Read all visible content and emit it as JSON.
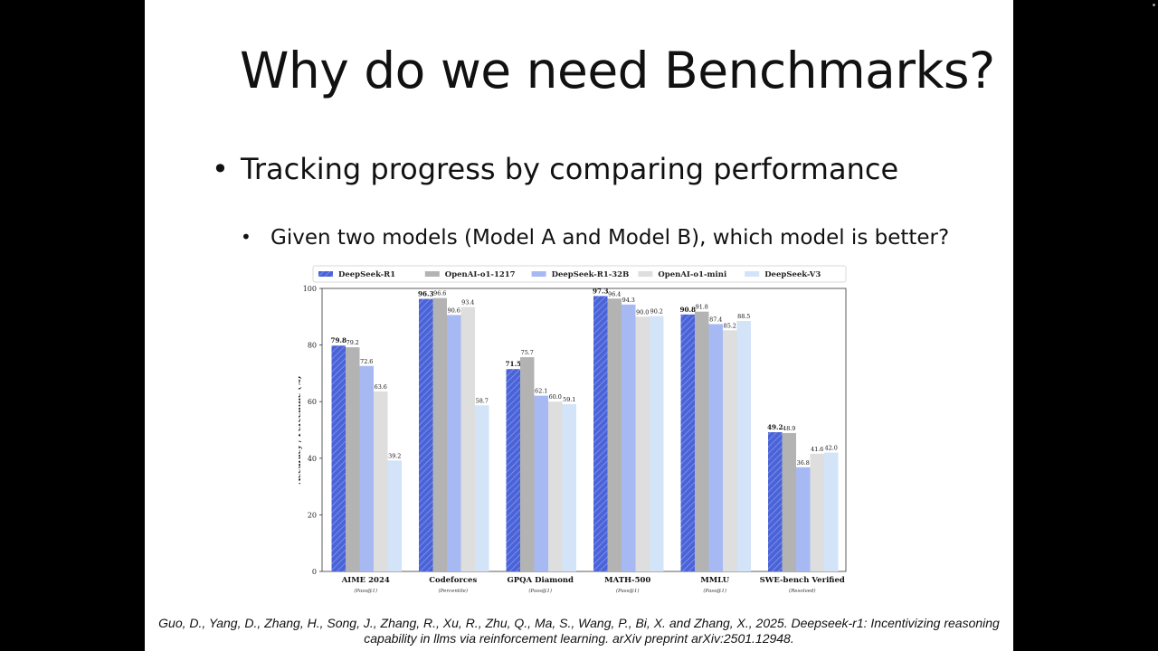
{
  "slide": {
    "title": "Why do we need Benchmarks?",
    "bullet1": "Tracking progress by comparing performance",
    "bullet2": "Given two models (Model A and Model B), which model is better?",
    "bullet_symbol": "•",
    "citation_line1": "Guo, D., Yang, D., Zhang, H., Song, J., Zhang, R., Xu, R., Zhu, Q., Ma, S., Wang, P., Bi, X. and Zhang, X., 2025. Deepseek-r1: Incentivizing reasoning",
    "citation_line2": "capability in llms via reinforcement learning. arXiv preprint arXiv:2501.12948."
  },
  "chart_data": {
    "type": "bar",
    "ylabel": "Accuracy / Percentile (%)",
    "ylim": [
      0,
      100
    ],
    "yticks": [
      0,
      20,
      40,
      60,
      80,
      100
    ],
    "grid": false,
    "legend_position": "top",
    "categories": [
      "AIME 2024",
      "Codeforces",
      "GPQA Diamond",
      "MATH-500",
      "MMLU",
      "SWE-bench Verified"
    ],
    "category_sublabels": [
      "(Pass@1)",
      "(Percentile)",
      "(Pass@1)",
      "(Pass@1)",
      "(Pass@1)",
      "(Resolved)"
    ],
    "series": [
      {
        "name": "DeepSeek-R1",
        "values": [
          79.8,
          96.3,
          71.5,
          97.3,
          90.8,
          49.2
        ],
        "color": "#4a63d8",
        "hatched": true,
        "bold_labels": true
      },
      {
        "name": "OpenAI-o1-1217",
        "values": [
          79.2,
          96.6,
          75.7,
          96.4,
          91.8,
          48.9
        ],
        "color": "#b3b3b3"
      },
      {
        "name": "DeepSeek-R1-32B",
        "values": [
          72.6,
          90.6,
          62.1,
          94.3,
          87.4,
          36.8
        ],
        "color": "#a7b9f2"
      },
      {
        "name": "OpenAI-o1-mini",
        "values": [
          63.6,
          93.4,
          60.0,
          90.0,
          85.2,
          41.6
        ],
        "color": "#dedede"
      },
      {
        "name": "DeepSeek-V3",
        "values": [
          39.2,
          58.7,
          59.1,
          90.2,
          88.5,
          42.0
        ],
        "color": "#d3e3f8"
      }
    ]
  }
}
